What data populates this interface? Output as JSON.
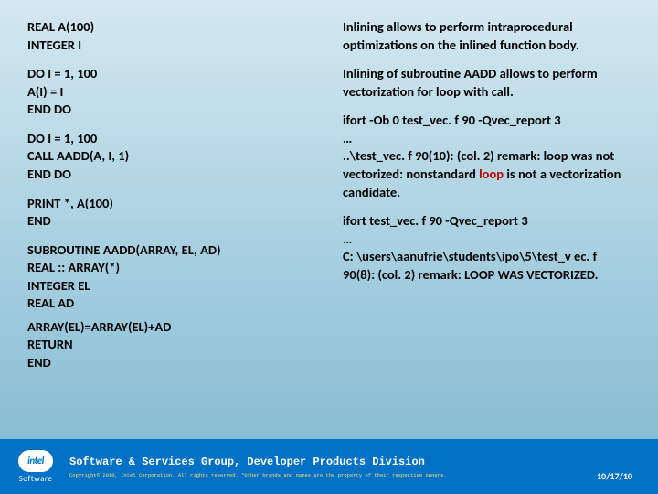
{
  "left": {
    "b1": "REAL A(100)\nINTEGER I",
    "b2": "DO I = 1, 100\n  A(I) = I\nEND DO",
    "b3": "DO I = 1, 100\n  CALL AADD(A, I, 1)\nEND DO",
    "b4": "PRINT *, A(100)\nEND",
    "b5": "SUBROUTINE AADD(ARRAY, EL, AD)\n  REAL :: ARRAY(*)\n  INTEGER EL\n  REAL AD",
    "b6": "  ARRAY(EL)=ARRAY(EL)+AD\n  RETURN\nEND"
  },
  "right": {
    "p1": "Inlining allows to perform intraprocedural optimizations on the inlined function body.",
    "p2": "Inlining of subroutine AADD allows to perform vectorization for loop with call.",
    "p3a": "ifort  -Ob 0 test_vec. f 90 -Qvec_report 3",
    "p3b": "…",
    "p3c": "..\\test_vec. f 90(10): (col. 2) remark: loop was not vectorized: nonstandard ",
    "p3d": "loop",
    "p3e": " is not a vectorization candidate.",
    "p4a": "ifort  test_vec. f 90 -Qvec_report 3",
    "p4b": "…",
    "p4c": "C: \\users\\aanufrie\\students\\ipo\\5\\test_v ec. f 90(8): (col. 2) remark: LOOP WAS VECTORIZED."
  },
  "footer": {
    "logo_text": "intel",
    "software": "Software",
    "title": "Software & Services Group, Developer Products Division",
    "copy": "Copyright© 2010, Intel Corporation. All rights reserved. *Other brands and names are the property of their respective owners.",
    "date": "10/17/10"
  },
  "colors": {
    "footer_bg": "#0071c5",
    "red": "#c00000"
  }
}
